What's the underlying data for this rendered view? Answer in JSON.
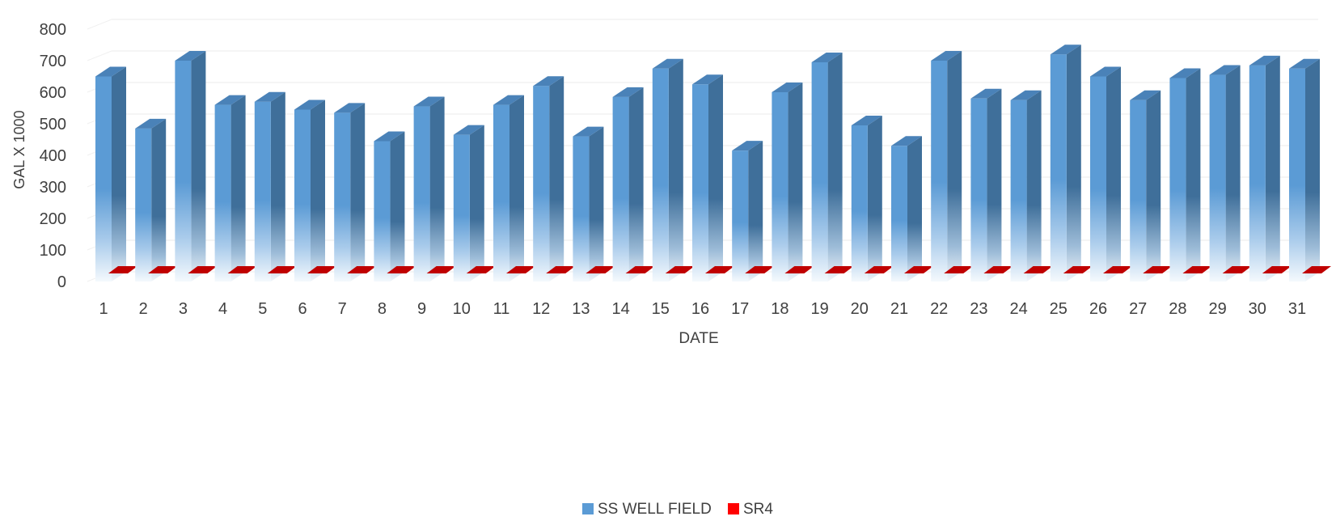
{
  "chart_data": {
    "type": "bar",
    "style": "3d-column",
    "xlabel": "DATE",
    "ylabel": "GAL X 1000",
    "ylim": [
      0,
      800
    ],
    "yticks": [
      0,
      100,
      200,
      300,
      400,
      500,
      600,
      700,
      800
    ],
    "categories": [
      "1",
      "2",
      "3",
      "4",
      "5",
      "6",
      "7",
      "8",
      "9",
      "10",
      "11",
      "12",
      "13",
      "14",
      "15",
      "16",
      "17",
      "18",
      "19",
      "20",
      "21",
      "22",
      "23",
      "24",
      "25",
      "26",
      "27",
      "28",
      "29",
      "30",
      "31"
    ],
    "series": [
      {
        "name": "SS WELL FIELD",
        "color": "#5b9bd5",
        "values": [
          650,
          485,
          700,
          560,
          570,
          545,
          535,
          445,
          555,
          465,
          560,
          620,
          460,
          585,
          675,
          625,
          415,
          600,
          695,
          495,
          430,
          700,
          580,
          575,
          720,
          650,
          575,
          645,
          655,
          685,
          675
        ]
      },
      {
        "name": "SR4",
        "color": "#ff0000",
        "values": [
          0,
          0,
          0,
          0,
          0,
          0,
          0,
          0,
          0,
          0,
          0,
          0,
          0,
          0,
          0,
          0,
          0,
          0,
          0,
          0,
          0,
          0,
          0,
          0,
          0,
          0,
          0,
          0,
          0,
          0,
          0
        ]
      }
    ],
    "grid": true,
    "legend": "bottom-center"
  }
}
